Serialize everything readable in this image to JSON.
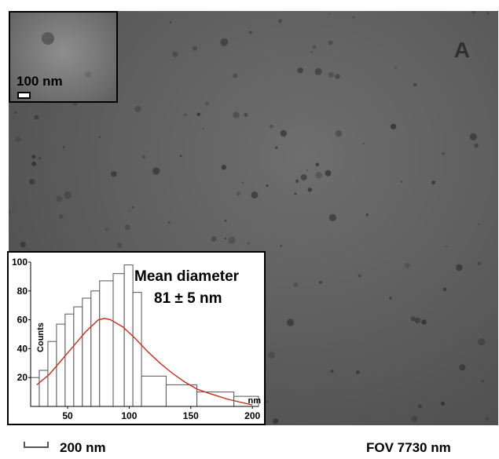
{
  "image": {
    "panel_letter": "A",
    "inset_scale_label": "100 nm",
    "bottom_scale_label": "200 nm",
    "fov_label": "FOV 7730 nm",
    "mean_label_line1": "Mean diameter",
    "mean_label_line2": "81 ± 5 nm"
  },
  "chart_data": {
    "type": "bar",
    "xlabel": "nm",
    "ylabel": "Counts",
    "xlim": [
      20,
      205
    ],
    "ylim": [
      0,
      100
    ],
    "xticks": [
      50,
      100,
      150,
      200
    ],
    "yticks": [
      20,
      40,
      60,
      80,
      100
    ],
    "bins": [
      {
        "x0": 20,
        "x1": 27,
        "count": 20
      },
      {
        "x0": 27,
        "x1": 34,
        "count": 25
      },
      {
        "x0": 34,
        "x1": 41,
        "count": 45
      },
      {
        "x0": 41,
        "x1": 48,
        "count": 57
      },
      {
        "x0": 48,
        "x1": 55,
        "count": 64
      },
      {
        "x0": 55,
        "x1": 62,
        "count": 69
      },
      {
        "x0": 62,
        "x1": 69,
        "count": 75
      },
      {
        "x0": 69,
        "x1": 76,
        "count": 80
      },
      {
        "x0": 76,
        "x1": 87,
        "count": 87
      },
      {
        "x0": 87,
        "x1": 96,
        "count": 92
      },
      {
        "x0": 96,
        "x1": 103,
        "count": 98
      },
      {
        "x0": 103,
        "x1": 110,
        "count": 79
      },
      {
        "x0": 110,
        "x1": 130,
        "count": 21
      },
      {
        "x0": 130,
        "x1": 155,
        "count": 15
      },
      {
        "x0": 155,
        "x1": 185,
        "count": 10
      },
      {
        "x0": 185,
        "x1": 205,
        "count": 7
      }
    ],
    "fit_curve": {
      "color": "#c0392b",
      "points": [
        [
          25,
          15
        ],
        [
          35,
          22
        ],
        [
          45,
          32
        ],
        [
          55,
          42
        ],
        [
          65,
          52
        ],
        [
          75,
          60
        ],
        [
          80,
          61
        ],
        [
          85,
          60
        ],
        [
          95,
          55
        ],
        [
          105,
          47
        ],
        [
          115,
          38
        ],
        [
          125,
          30
        ],
        [
          135,
          23
        ],
        [
          145,
          17
        ],
        [
          155,
          12
        ],
        [
          165,
          9
        ],
        [
          180,
          5
        ],
        [
          195,
          2
        ],
        [
          200,
          1
        ]
      ]
    }
  }
}
